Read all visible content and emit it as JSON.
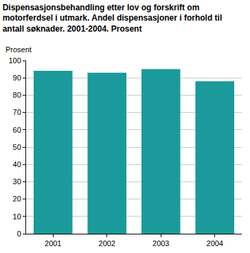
{
  "chart_data": {
    "type": "bar",
    "title": "Dispensasjonsbehandling etter lov og forskrift om\nmotorferdsel i utmark. Andel dispensasjoner i forhold til\nantall søknader. 2001-2004. Prosent",
    "y_label": "Prosent",
    "categories": [
      "2001",
      "2002",
      "2003",
      "2004"
    ],
    "values": [
      94,
      93,
      95,
      88
    ],
    "color": "#1a9a9a",
    "ylim": [
      0,
      100
    ],
    "yticks": [
      0,
      10,
      20,
      30,
      40,
      50,
      60,
      70,
      80,
      90,
      100
    ],
    "grid": true
  }
}
